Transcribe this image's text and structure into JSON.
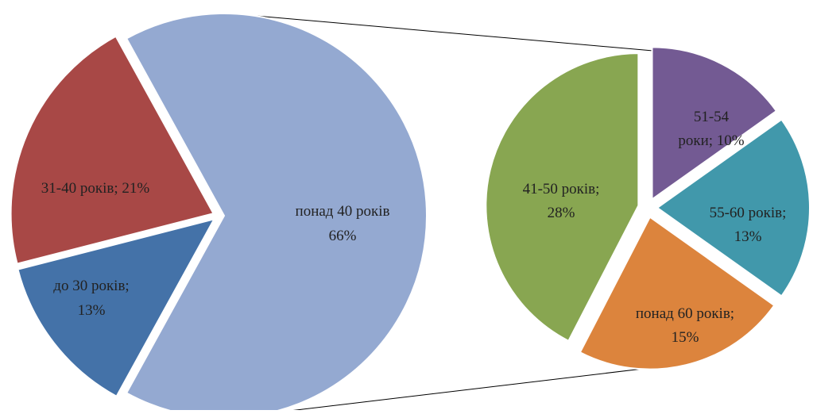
{
  "chart_data": {
    "type": "pie",
    "title": "",
    "legend": "none",
    "main_pie": {
      "slices": [
        {
          "label": "до 30 років;",
          "value_label": "13%",
          "value": 13,
          "color": "#4472a8"
        },
        {
          "label": "31-40 років; 21%",
          "value_label": "",
          "value": 21,
          "color": "#a84846"
        },
        {
          "label": "понад 40 років",
          "value_label": "66%",
          "value": 66,
          "color": "#94a9d1",
          "exploded_to_secondary": true
        }
      ]
    },
    "secondary_pie": {
      "slices": [
        {
          "label": "41-50 років;",
          "value_label": "28%",
          "value": 28,
          "color": "#88a651"
        },
        {
          "label": "51-54",
          "value_label": "роки; 10%",
          "value": 10,
          "color": "#735a93"
        },
        {
          "label": "55-60 років;",
          "value_label": "13%",
          "value": 13,
          "color": "#4198ab"
        },
        {
          "label": "понад 60 років;",
          "value_label": "15%",
          "value": 15,
          "color": "#dc843d"
        }
      ]
    }
  }
}
